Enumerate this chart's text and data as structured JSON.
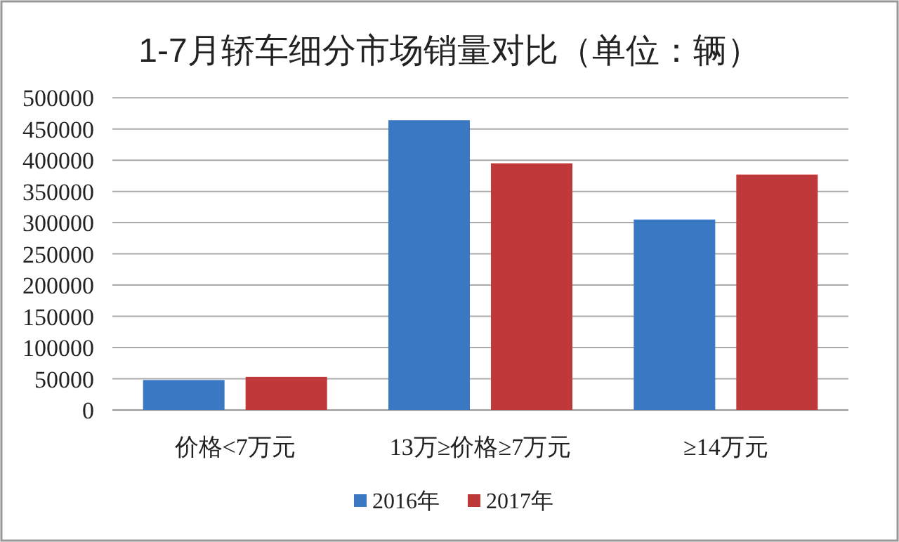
{
  "chart_data": {
    "type": "bar",
    "title": "1-7月轿车细分市场销量对比（单位：辆）",
    "categories": [
      "价格<7万元",
      "13万≥价格≥7万元",
      "≥14万元"
    ],
    "series": [
      {
        "name": "2016年",
        "color": "#3a78c3",
        "values": [
          48000,
          464000,
          305000
        ]
      },
      {
        "name": "2017年",
        "color": "#c0393a",
        "values": [
          53000,
          395000,
          377000
        ]
      }
    ],
    "ylim": [
      0,
      500000
    ],
    "yticks": [
      0,
      50000,
      100000,
      150000,
      200000,
      250000,
      300000,
      350000,
      400000,
      450000,
      500000
    ],
    "grid": "y",
    "legend": "bottom"
  }
}
